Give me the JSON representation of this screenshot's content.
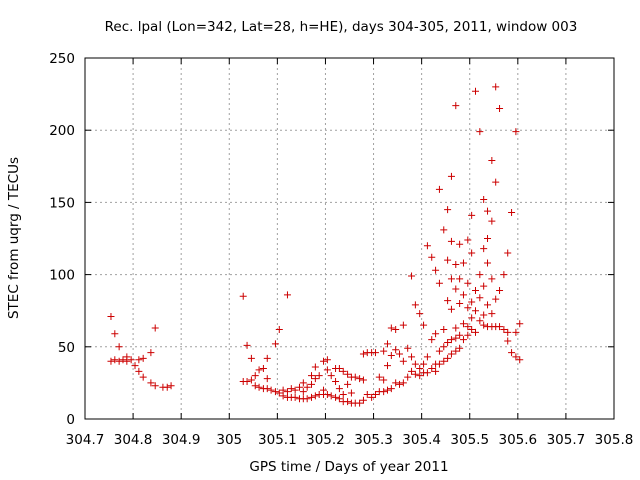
{
  "chart_data": {
    "type": "scatter",
    "title": "Rec. lpal (Lon=342, Lat=28, h=HE), days 304-305, 2011, window 003",
    "xlabel": "GPS time / Days of year 2011",
    "ylabel": "STEC from uqrg / TECUs",
    "xlim": [
      304.7,
      305.8
    ],
    "ylim": [
      0,
      250
    ],
    "xticks": [
      "304.7",
      "304.8",
      "304.9",
      "305",
      "305.1",
      "305.2",
      "305.3",
      "305.4",
      "305.5",
      "305.6",
      "305.7",
      "305.8"
    ],
    "yticks": [
      "0",
      "50",
      "100",
      "150",
      "200",
      "250"
    ],
    "grid": true,
    "marker": "+",
    "color": "#cc0000",
    "points": [
      [
        304.754,
        71
      ],
      [
        304.754,
        40
      ],
      [
        304.762,
        59
      ],
      [
        304.762,
        41
      ],
      [
        304.771,
        50
      ],
      [
        304.771,
        40
      ],
      [
        304.779,
        41
      ],
      [
        304.787,
        43
      ],
      [
        304.787,
        40
      ],
      [
        304.796,
        41
      ],
      [
        304.804,
        37
      ],
      [
        304.812,
        41
      ],
      [
        304.812,
        33
      ],
      [
        304.821,
        42
      ],
      [
        304.821,
        29
      ],
      [
        304.837,
        46
      ],
      [
        304.837,
        25
      ],
      [
        304.846,
        63
      ],
      [
        304.846,
        23
      ],
      [
        304.862,
        22
      ],
      [
        304.871,
        22
      ],
      [
        304.879,
        23
      ],
      [
        305.029,
        85
      ],
      [
        305.029,
        26
      ],
      [
        305.037,
        51
      ],
      [
        305.037,
        26
      ],
      [
        305.046,
        42
      ],
      [
        305.046,
        27
      ],
      [
        305.054,
        30
      ],
      [
        305.054,
        23
      ],
      [
        305.062,
        34
      ],
      [
        305.062,
        22
      ],
      [
        305.071,
        35
      ],
      [
        305.071,
        21
      ],
      [
        305.079,
        42
      ],
      [
        305.079,
        28
      ],
      [
        305.079,
        21
      ],
      [
        305.087,
        20
      ],
      [
        305.096,
        52
      ],
      [
        305.096,
        19
      ],
      [
        305.104,
        62
      ],
      [
        305.104,
        18
      ],
      [
        305.112,
        20
      ],
      [
        305.112,
        16
      ],
      [
        305.121,
        86
      ],
      [
        305.121,
        19
      ],
      [
        305.121,
        15
      ],
      [
        305.129,
        21
      ],
      [
        305.129,
        15
      ],
      [
        305.137,
        20
      ],
      [
        305.137,
        15
      ],
      [
        305.146,
        22
      ],
      [
        305.146,
        14
      ],
      [
        305.154,
        25
      ],
      [
        305.154,
        19
      ],
      [
        305.154,
        14
      ],
      [
        305.162,
        22
      ],
      [
        305.162,
        14
      ],
      [
        305.171,
        30
      ],
      [
        305.171,
        24
      ],
      [
        305.171,
        15
      ],
      [
        305.179,
        36
      ],
      [
        305.179,
        28
      ],
      [
        305.179,
        16
      ],
      [
        305.187,
        30
      ],
      [
        305.187,
        17
      ],
      [
        305.196,
        40
      ],
      [
        305.196,
        20
      ],
      [
        305.196,
        17
      ],
      [
        305.204,
        41
      ],
      [
        305.204,
        34
      ],
      [
        305.204,
        17
      ],
      [
        305.212,
        30
      ],
      [
        305.212,
        16
      ],
      [
        305.221,
        35
      ],
      [
        305.221,
        26
      ],
      [
        305.221,
        15
      ],
      [
        305.229,
        35
      ],
      [
        305.229,
        21
      ],
      [
        305.229,
        14
      ],
      [
        305.237,
        33
      ],
      [
        305.237,
        17
      ],
      [
        305.237,
        12
      ],
      [
        305.246,
        31
      ],
      [
        305.246,
        24
      ],
      [
        305.246,
        12
      ],
      [
        305.254,
        29
      ],
      [
        305.254,
        18
      ],
      [
        305.254,
        11
      ],
      [
        305.262,
        29
      ],
      [
        305.262,
        11
      ],
      [
        305.271,
        28
      ],
      [
        305.271,
        11
      ],
      [
        305.279,
        45
      ],
      [
        305.279,
        27
      ],
      [
        305.279,
        13
      ],
      [
        305.287,
        46
      ],
      [
        305.287,
        17
      ],
      [
        305.296,
        46
      ],
      [
        305.296,
        15
      ],
      [
        305.304,
        46
      ],
      [
        305.304,
        17
      ],
      [
        305.312,
        29
      ],
      [
        305.312,
        19
      ],
      [
        305.321,
        47
      ],
      [
        305.321,
        27
      ],
      [
        305.321,
        19
      ],
      [
        305.329,
        52
      ],
      [
        305.329,
        37
      ],
      [
        305.329,
        20
      ],
      [
        305.337,
        63
      ],
      [
        305.337,
        44
      ],
      [
        305.337,
        21
      ],
      [
        305.346,
        62
      ],
      [
        305.346,
        48
      ],
      [
        305.346,
        25
      ],
      [
        305.354,
        45
      ],
      [
        305.354,
        24
      ],
      [
        305.362,
        65
      ],
      [
        305.362,
        40
      ],
      [
        305.362,
        25
      ],
      [
        305.371,
        49
      ],
      [
        305.371,
        29
      ],
      [
        305.379,
        99
      ],
      [
        305.379,
        43
      ],
      [
        305.379,
        33
      ],
      [
        305.387,
        79
      ],
      [
        305.387,
        38
      ],
      [
        305.387,
        31
      ],
      [
        305.396,
        73
      ],
      [
        305.396,
        35
      ],
      [
        305.396,
        30
      ],
      [
        305.404,
        65
      ],
      [
        305.404,
        38
      ],
      [
        305.404,
        32
      ],
      [
        305.412,
        120
      ],
      [
        305.412,
        43
      ],
      [
        305.412,
        32
      ],
      [
        305.421,
        112
      ],
      [
        305.421,
        55
      ],
      [
        305.421,
        35
      ],
      [
        305.429,
        103
      ],
      [
        305.429,
        59
      ],
      [
        305.429,
        38
      ],
      [
        305.429,
        33
      ],
      [
        305.437,
        159
      ],
      [
        305.437,
        94
      ],
      [
        305.437,
        47
      ],
      [
        305.437,
        38
      ],
      [
        305.446,
        131
      ],
      [
        305.446,
        62
      ],
      [
        305.446,
        50
      ],
      [
        305.446,
        40
      ],
      [
        305.454,
        145
      ],
      [
        305.454,
        110
      ],
      [
        305.454,
        82
      ],
      [
        305.454,
        53
      ],
      [
        305.454,
        42
      ],
      [
        305.462,
        168
      ],
      [
        305.462,
        123
      ],
      [
        305.462,
        97
      ],
      [
        305.462,
        76
      ],
      [
        305.462,
        55
      ],
      [
        305.462,
        45
      ],
      [
        305.471,
        217
      ],
      [
        305.471,
        107
      ],
      [
        305.471,
        90
      ],
      [
        305.471,
        63
      ],
      [
        305.471,
        56
      ],
      [
        305.471,
        47
      ],
      [
        305.479,
        121
      ],
      [
        305.479,
        97
      ],
      [
        305.479,
        80
      ],
      [
        305.479,
        58
      ],
      [
        305.479,
        49
      ],
      [
        305.487,
        108
      ],
      [
        305.487,
        86
      ],
      [
        305.487,
        66
      ],
      [
        305.487,
        55
      ],
      [
        305.496,
        124
      ],
      [
        305.496,
        94
      ],
      [
        305.496,
        77
      ],
      [
        305.496,
        64
      ],
      [
        305.496,
        58
      ],
      [
        305.504,
        141
      ],
      [
        305.504,
        115
      ],
      [
        305.504,
        81
      ],
      [
        305.504,
        70
      ],
      [
        305.504,
        62
      ],
      [
        305.512,
        227
      ],
      [
        305.512,
        89
      ],
      [
        305.512,
        75
      ],
      [
        305.512,
        60
      ],
      [
        305.521,
        199
      ],
      [
        305.521,
        100
      ],
      [
        305.521,
        84
      ],
      [
        305.521,
        68
      ],
      [
        305.529,
        152
      ],
      [
        305.529,
        118
      ],
      [
        305.529,
        92
      ],
      [
        305.529,
        72
      ],
      [
        305.529,
        65
      ],
      [
        305.537,
        144
      ],
      [
        305.537,
        125
      ],
      [
        305.537,
        108
      ],
      [
        305.537,
        79
      ],
      [
        305.537,
        64
      ],
      [
        305.546,
        179
      ],
      [
        305.546,
        137
      ],
      [
        305.546,
        97
      ],
      [
        305.546,
        73
      ],
      [
        305.546,
        64
      ],
      [
        305.554,
        230
      ],
      [
        305.554,
        164
      ],
      [
        305.554,
        83
      ],
      [
        305.554,
        64
      ],
      [
        305.562,
        215
      ],
      [
        305.562,
        89
      ],
      [
        305.562,
        64
      ],
      [
        305.571,
        100
      ],
      [
        305.571,
        62
      ],
      [
        305.579,
        115
      ],
      [
        305.579,
        54
      ],
      [
        305.579,
        60
      ],
      [
        305.587,
        143
      ],
      [
        305.587,
        46
      ],
      [
        305.596,
        199
      ],
      [
        305.596,
        60
      ],
      [
        305.596,
        43
      ],
      [
        305.604,
        66
      ],
      [
        305.604,
        41
      ]
    ]
  }
}
